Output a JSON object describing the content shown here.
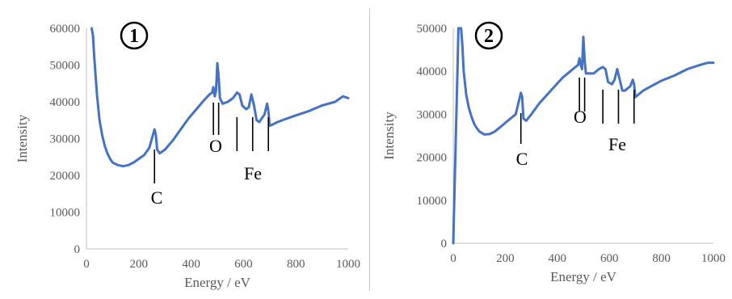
{
  "chart_data": [
    {
      "type": "line",
      "panel_label": "1",
      "xlabel": "Energy / eV",
      "ylabel": "Intensity",
      "xlim": [
        0,
        1000
      ],
      "ylim": [
        0,
        60000
      ],
      "xticks": [
        "0",
        "200",
        "400",
        "600",
        "800",
        "1000"
      ],
      "yticks": [
        "0",
        "10000",
        "20000",
        "30000",
        "40000",
        "50000",
        "60000"
      ],
      "grid": false,
      "line_color": "#4472c4",
      "x": [
        20,
        25,
        30,
        40,
        50,
        60,
        70,
        80,
        90,
        100,
        120,
        140,
        160,
        180,
        200,
        220,
        240,
        250,
        260,
        265,
        270,
        280,
        300,
        330,
        360,
        390,
        420,
        450,
        470,
        480,
        485,
        490,
        495,
        500,
        505,
        510,
        520,
        540,
        560,
        575,
        585,
        595,
        610,
        620,
        630,
        640,
        650,
        660,
        680,
        690,
        695,
        700,
        710,
        730,
        760,
        800,
        850,
        900,
        950,
        980,
        1000
      ],
      "y": [
        60000,
        58000,
        52000,
        42000,
        35000,
        31000,
        28000,
        26000,
        24500,
        23500,
        22800,
        22500,
        22800,
        23500,
        24500,
        25500,
        27500,
        30000,
        32500,
        31000,
        27000,
        26000,
        27000,
        29500,
        32500,
        35500,
        38000,
        40500,
        42000,
        42500,
        44000,
        41500,
        43000,
        50500,
        47000,
        41000,
        39500,
        40000,
        41000,
        42500,
        42000,
        39000,
        38000,
        38500,
        42000,
        39000,
        35000,
        34500,
        36500,
        39500,
        37500,
        33500,
        33800,
        34500,
        35300,
        36300,
        37500,
        39000,
        40000,
        41500,
        41000
      ],
      "annotations": [
        {
          "label": "C",
          "element_x": [
            260
          ]
        },
        {
          "label": "O",
          "element_x": [
            485,
            505
          ]
        },
        {
          "label": "Fe",
          "element_x": [
            575,
            635,
            695
          ]
        }
      ]
    },
    {
      "type": "line",
      "panel_label": "2",
      "xlabel": "Energy / eV",
      "ylabel": "Intensity",
      "xlim": [
        0,
        1000
      ],
      "ylim": [
        0,
        50000
      ],
      "xticks": [
        "0",
        "200",
        "400",
        "600",
        "800",
        "1000"
      ],
      "yticks": [
        "0",
        "10000",
        "20000",
        "30000",
        "40000",
        "50000"
      ],
      "grid": false,
      "line_color": "#4472c4",
      "x": [
        0,
        2,
        4,
        6,
        8,
        10,
        12,
        14,
        16,
        18,
        20,
        22,
        24,
        26,
        28,
        30,
        35,
        40,
        50,
        60,
        70,
        80,
        90,
        100,
        120,
        140,
        160,
        180,
        200,
        220,
        240,
        250,
        260,
        265,
        270,
        280,
        300,
        330,
        360,
        390,
        420,
        450,
        470,
        480,
        485,
        490,
        495,
        500,
        505,
        510,
        520,
        540,
        560,
        575,
        585,
        595,
        610,
        620,
        630,
        640,
        650,
        660,
        680,
        690,
        695,
        700,
        710,
        730,
        760,
        800,
        850,
        900,
        950,
        980,
        1000
      ],
      "y": [
        0,
        5000,
        10000,
        15000,
        20000,
        25000,
        30000,
        35000,
        40000,
        45000,
        50000,
        50000,
        50000,
        50000,
        50000,
        50000,
        46000,
        40000,
        34500,
        31500,
        29500,
        27800,
        26800,
        26000,
        25300,
        25400,
        26000,
        27000,
        28000,
        29000,
        30000,
        32500,
        35000,
        34000,
        29000,
        28500,
        30000,
        32500,
        34500,
        36500,
        38500,
        40000,
        41000,
        41500,
        43000,
        41500,
        40500,
        48000,
        42500,
        39500,
        39500,
        39500,
        40500,
        41000,
        40500,
        37500,
        37000,
        38000,
        40500,
        38000,
        35500,
        35500,
        36500,
        38000,
        37000,
        34000,
        34500,
        35500,
        36500,
        37800,
        39000,
        40500,
        41500,
        42000,
        42000
      ],
      "annotations": [
        {
          "label": "C",
          "element_x": [
            260
          ]
        },
        {
          "label": "O",
          "element_x": [
            485,
            505
          ]
        },
        {
          "label": "Fe",
          "element_x": [
            575,
            635,
            695
          ]
        }
      ]
    }
  ]
}
